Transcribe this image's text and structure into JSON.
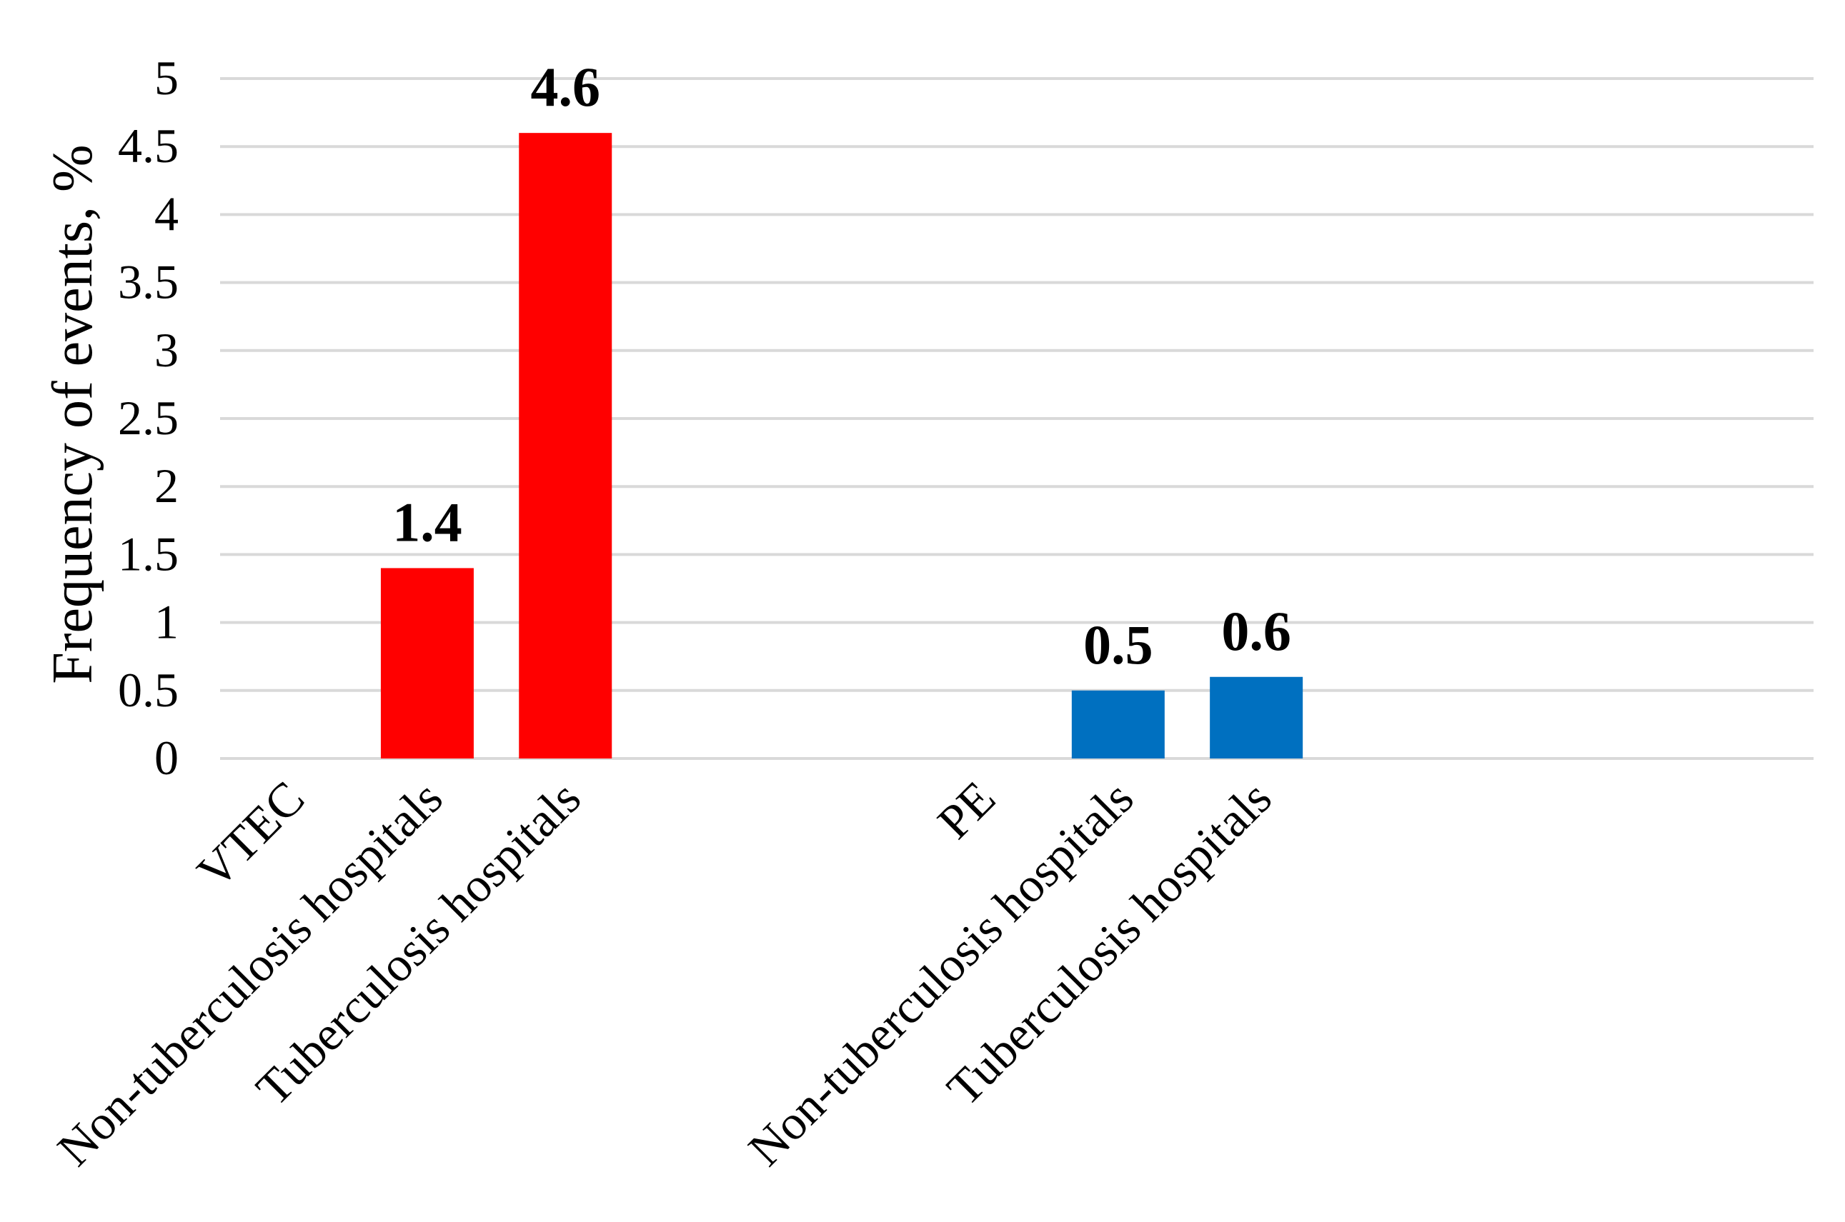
{
  "chart_data": {
    "type": "bar",
    "ylabel": "Frequency of events, %",
    "ylim": [
      0,
      5
    ],
    "y_ticks": [
      "0",
      "0.5",
      "1",
      "1.5",
      "2",
      "2.5",
      "3",
      "3.5",
      "4",
      "4.5",
      "5"
    ],
    "grid": true,
    "categories": [
      "VTEC",
      "Non-tuberculosis hospitals",
      "Tuberculosis hospitals",
      "PE",
      "Non-tuberculosis hospitals",
      "Tuberculosis hospitals"
    ],
    "values": [
      null,
      1.4,
      4.6,
      null,
      0.5,
      0.6
    ],
    "data_labels": [
      "",
      "1.4",
      "4.6",
      "",
      "0.5",
      "0.6"
    ],
    "bar_colors": [
      "",
      "#ff0000",
      "#ff0000",
      "",
      "#0070c0",
      "#0070c0"
    ],
    "gridline_color": "#d9d9d9"
  }
}
